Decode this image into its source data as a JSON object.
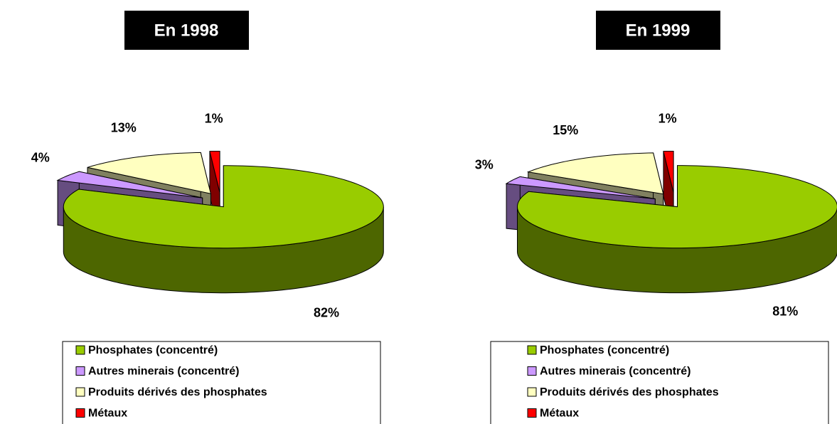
{
  "chart_data": [
    {
      "type": "pie",
      "title": "En 1998",
      "categories": [
        "Phosphates (concentré)",
        "Autres minerais (concentré)",
        "Produits dérivés des phosphates",
        "Métaux"
      ],
      "values": [
        82,
        4,
        13,
        1
      ],
      "value_labels": [
        "82%",
        "4%",
        "13%",
        "1%"
      ],
      "colors": [
        "#99cc00",
        "#cc99ff",
        "#ffffc0",
        "#ff0000"
      ]
    },
    {
      "type": "pie",
      "title": "En 1999",
      "categories": [
        "Phosphates (concentré)",
        "Autres minerais (concentré)",
        "Produits dérivés des phosphates",
        "Métaux"
      ],
      "values": [
        81,
        3,
        15,
        1
      ],
      "value_labels": [
        "81%",
        "3%",
        "15%",
        "1%"
      ],
      "colors": [
        "#99cc00",
        "#cc99ff",
        "#ffffc0",
        "#ff0000"
      ]
    }
  ]
}
